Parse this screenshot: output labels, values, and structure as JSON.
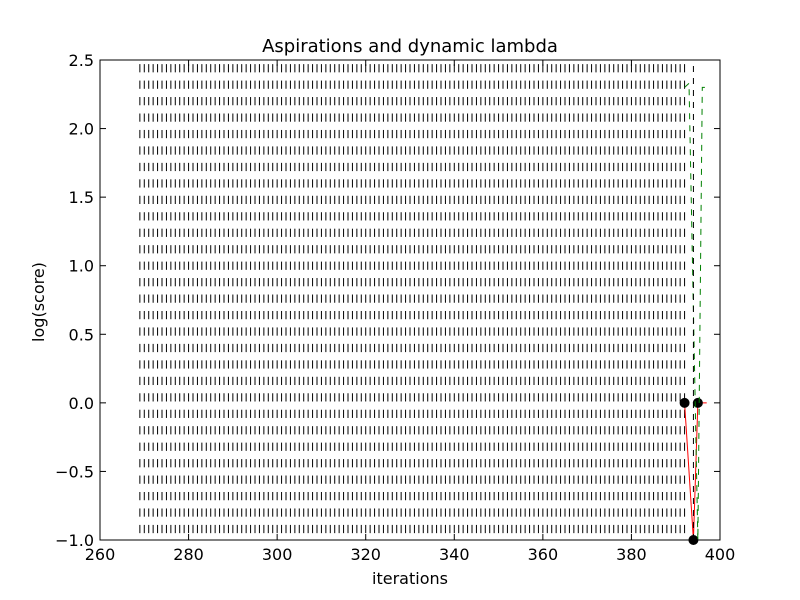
{
  "chart_data": {
    "type": "line",
    "title": "Aspirations and dynamic lambda",
    "xlabel": "iterations",
    "ylabel": "log(score)",
    "xlim": [
      260,
      400
    ],
    "ylim": [
      -1.0,
      2.5
    ],
    "x_ticks": [
      260,
      280,
      300,
      320,
      340,
      360,
      380,
      400
    ],
    "x_tick_labels": [
      "260",
      "280",
      "300",
      "320",
      "340",
      "360",
      "380",
      "400"
    ],
    "y_ticks": [
      -1.0,
      -0.5,
      0.0,
      0.5,
      1.0,
      1.5,
      2.0,
      2.5
    ],
    "y_tick_labels": [
      "−1.0",
      "−0.5",
      "0.0",
      "0.5",
      "1.0",
      "1.5",
      "2.0",
      "2.5"
    ],
    "grid": false,
    "legend": "none",
    "tick_mark_field": {
      "x_start": 269,
      "x_end": 392,
      "x_step": 1,
      "y_values": [
        -0.95,
        -0.83,
        -0.71,
        -0.59,
        -0.47,
        -0.35,
        -0.23,
        -0.11,
        0.01,
        0.13,
        0.25,
        0.37,
        0.49,
        0.61,
        0.73,
        0.85,
        0.97,
        1.09,
        1.21,
        1.33,
        1.45,
        1.57,
        1.69,
        1.81,
        1.93,
        2.05,
        2.17,
        2.29,
        2.41
      ],
      "mark_height": 0.06,
      "color": "#000000"
    },
    "series": [
      {
        "style": "solid",
        "color": "#ff0000",
        "marker": "o",
        "marker_color": "#000000",
        "x": [
          392,
          394,
          395,
          397
        ],
        "y": [
          0.0,
          -1.0,
          0.0,
          0.0
        ],
        "marked_points": [
          0,
          1,
          2
        ]
      },
      {
        "style": "dashed",
        "color": "#008000",
        "x": [
          392,
          393,
          395,
          396,
          397
        ],
        "y": [
          2.3,
          2.33,
          -1.0,
          2.3,
          2.3
        ]
      },
      {
        "style": "dashed",
        "color": "#000000",
        "x": [
          394,
          394
        ],
        "y": [
          -1.0,
          2.5
        ]
      }
    ]
  }
}
